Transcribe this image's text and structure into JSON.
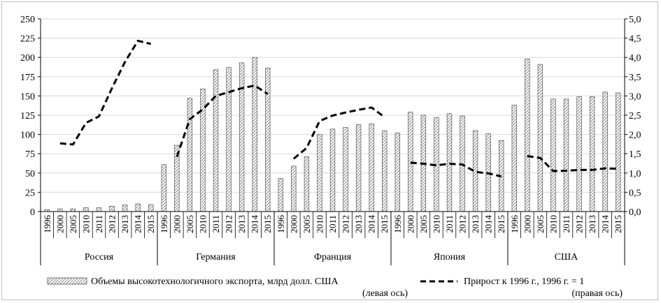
{
  "chart_data": {
    "type": "bar",
    "colors": {
      "bar_fill": "#ffffff",
      "bar_hatch": "#555555",
      "line": "#000000",
      "axis": "#000000",
      "grid": "#d9d9d9"
    },
    "grid": true,
    "legend_placement": "bottom",
    "y_left": {
      "min": 0,
      "max": 250,
      "step": 25,
      "ticks": [
        "0",
        "25",
        "50",
        "75",
        "100",
        "125",
        "150",
        "175",
        "200",
        "225",
        "250"
      ]
    },
    "y_right": {
      "min": 0,
      "max": 5,
      "step": 0.5,
      "ticks": [
        "0,0",
        "0,5",
        "1,0",
        "1,5",
        "2,0",
        "2,5",
        "3,0",
        "3,5",
        "4,0",
        "4,5",
        "5,0"
      ]
    },
    "groups": [
      {
        "name": "Россия",
        "years": [
          "1996",
          "2000",
          "2005",
          "2010",
          "2011",
          "2012",
          "2013",
          "2014",
          "2015"
        ],
        "export": [
          2.5,
          3.5,
          3.5,
          5,
          5,
          7,
          8.5,
          10,
          9
        ],
        "growth": [
          null,
          1.77,
          1.74,
          2.3,
          2.47,
          3.2,
          3.88,
          4.43,
          4.35
        ]
      },
      {
        "name": "Германия",
        "years": [
          "1996",
          "2000",
          "2005",
          "2010",
          "2011",
          "2012",
          "2013",
          "2014",
          "2015"
        ],
        "export": [
          61,
          86,
          147,
          159,
          184,
          187,
          193,
          200,
          186
        ],
        "growth": [
          null,
          1.42,
          2.4,
          2.65,
          3.0,
          3.1,
          3.2,
          3.27,
          3.05
        ]
      },
      {
        "name": "Франция",
        "years": [
          "1996",
          "2000",
          "2005",
          "2010",
          "2011",
          "2012",
          "2013",
          "2014",
          "2015"
        ],
        "export": [
          43,
          59,
          71,
          100,
          107,
          109,
          113,
          114,
          105
        ],
        "growth": [
          null,
          1.37,
          1.65,
          2.35,
          2.49,
          2.57,
          2.64,
          2.7,
          2.45
        ]
      },
      {
        "name": "Япония",
        "years": [
          "1996",
          "2000",
          "2005",
          "2010",
          "2011",
          "2012",
          "2013",
          "2014",
          "2015"
        ],
        "export": [
          102,
          129,
          125,
          122,
          127,
          124,
          105,
          101,
          92
        ],
        "growth": [
          null,
          1.27,
          1.24,
          1.2,
          1.24,
          1.22,
          1.03,
          0.99,
          0.91
        ]
      },
      {
        "name": "США",
        "years": [
          "1996",
          "2000",
          "2005",
          "2010",
          "2011",
          "2012",
          "2013",
          "2014",
          "2015"
        ],
        "export": [
          138,
          198,
          191,
          146,
          146,
          149,
          149,
          155,
          154
        ],
        "growth": [
          null,
          1.44,
          1.39,
          1.05,
          1.06,
          1.08,
          1.08,
          1.12,
          1.11
        ]
      }
    ],
    "legend": {
      "bar_label": "Объемы высокотехнологичного экспорта, млрд долл. США",
      "bar_note": "(левая ось)",
      "line_label": "Прирост к 1996 г., 1996 г. = 1",
      "line_note": "(правая ось)"
    }
  }
}
